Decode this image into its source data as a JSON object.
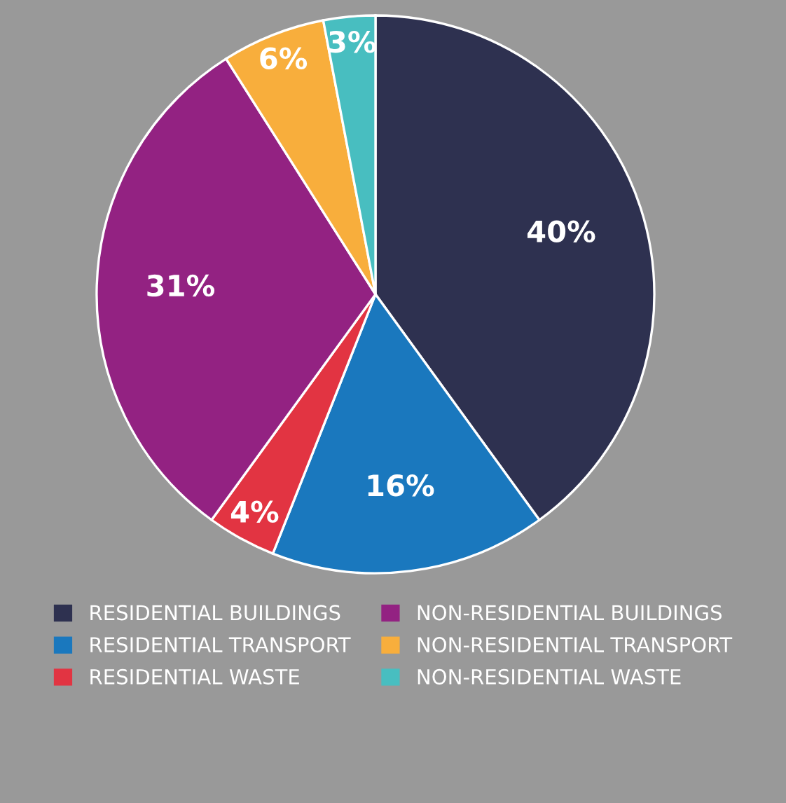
{
  "chart_data": {
    "type": "pie",
    "categories": [
      "RESIDENTIAL BUILDINGS",
      "RESIDENTIAL TRANSPORT",
      "RESIDENTIAL WASTE",
      "NON-RESIDENTIAL BUILDINGS",
      "NON-RESIDENTIAL TRANSPORT",
      "NON-RESIDENTIAL WASTE"
    ],
    "values": [
      40,
      16,
      4,
      31,
      6,
      3
    ],
    "colors": [
      "#2e3150",
      "#1a78be",
      "#e23442",
      "#932282",
      "#f8ae3c",
      "#48bec0"
    ],
    "value_labels": [
      "40%",
      "16%",
      "4%",
      "31%",
      "6%",
      "3%"
    ],
    "legend": "bottom"
  }
}
